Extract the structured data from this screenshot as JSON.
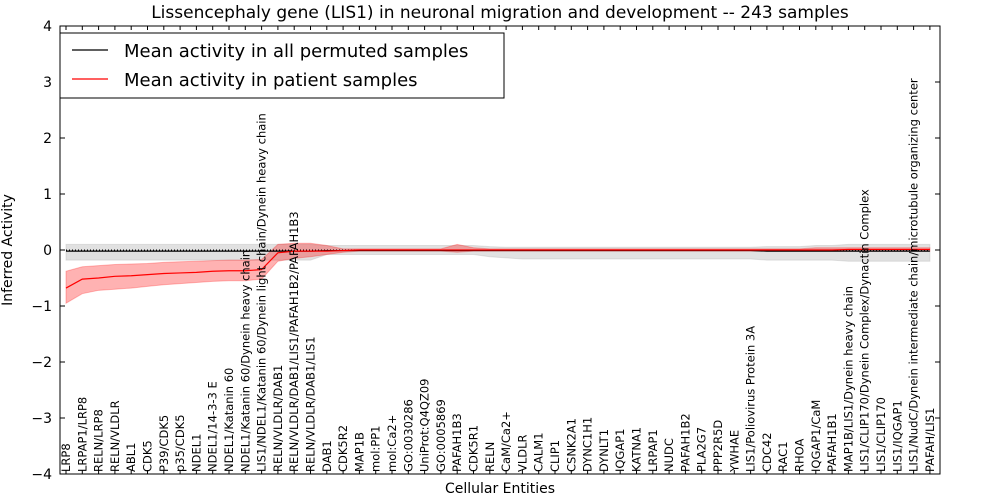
{
  "chart_data": {
    "type": "line",
    "title": "Lissencephaly gene (LIS1) in neuronal migration and development -- 243 samples",
    "xlabel": "Cellular Entities",
    "ylabel": "Inferred Activity",
    "ylim": [
      -4,
      4
    ],
    "yticks": [
      "−4",
      "−3",
      "−2",
      "−1",
      "0",
      "1",
      "2",
      "3",
      "4"
    ],
    "grid": false,
    "legend_position": "top-left",
    "categories": [
      "LRP8",
      "LRPAP1/LRP8",
      "RELN/LRP8",
      "RELN/VLDLR",
      "ABL1",
      "CDK5",
      "P39/CDK5",
      "p35/CDK5",
      "NDEL1",
      "NDEL1/14-3-3 E",
      "NDEL1/Katanin 60",
      "NDEL1/Katanin 60/Dynein heavy chain",
      "LIS1/NDEL1/Katanin 60/Dynein light chain/Dynein heavy chain",
      "RELN/VLDLR/DAB1",
      "RELN/VLDLR/DAB1/LIS1/PAFAH1B2/PAFAH1B3",
      "RELN/VLDLR/DAB1/LIS1",
      "DAB1",
      "CDK5R2",
      "MAP1B",
      "mol:PP1",
      "mol:Ca2+",
      "GO:0030286",
      "UniProt:Q4QZ09",
      "GO:0005869",
      "PAFAH1B3",
      "CDK5R1",
      "RELN",
      "CaM/Ca2+",
      "VLDLR",
      "CALM1",
      "CLIP1",
      "CSNK2A1",
      "DYNC1H1",
      "DYNLT1",
      "IQGAP1",
      "KATNA1",
      "LRPAP1",
      "NUDC",
      "PAFAH1B2",
      "PLA2G7",
      "PPP2R5D",
      "YWHAE",
      "LIS1/Poliovirus Protein 3A",
      "CDC42",
      "RAC1",
      "RHOA",
      "IQGAP1/CaM",
      "PAFAH1B1",
      "MAP1B/LIS1/Dynein heavy chain",
      "LIS1/CLIP170/Dynein Complex/Dynactin Complex",
      "LIS1/CLIP170",
      "LIS1/IQGAP1",
      "LIS1/NudC/Dynein intermediate chain/microtubule organizing center",
      "PAFAH/LIS1"
    ],
    "series": [
      {
        "name": "Mean activity in all permuted samples",
        "color": "#000000",
        "band_color": "#aaaaaa",
        "values": [
          -0.02,
          -0.02,
          -0.02,
          -0.02,
          -0.02,
          -0.02,
          -0.02,
          -0.02,
          -0.02,
          -0.02,
          -0.02,
          -0.02,
          -0.02,
          -0.02,
          -0.02,
          -0.02,
          -0.01,
          -0.01,
          -0.01,
          -0.01,
          -0.01,
          -0.01,
          -0.01,
          -0.01,
          -0.01,
          -0.01,
          -0.01,
          -0.01,
          -0.01,
          -0.01,
          -0.01,
          -0.01,
          -0.01,
          -0.01,
          -0.01,
          -0.01,
          -0.01,
          -0.01,
          -0.01,
          -0.01,
          -0.01,
          -0.01,
          -0.01,
          -0.02,
          -0.02,
          -0.02,
          -0.02,
          -0.02,
          -0.02,
          -0.02,
          -0.02,
          -0.02,
          -0.02,
          -0.02
        ],
        "lower": [
          -0.18,
          -0.18,
          -0.18,
          -0.18,
          -0.18,
          -0.18,
          -0.18,
          -0.18,
          -0.18,
          -0.18,
          -0.18,
          -0.18,
          -0.18,
          -0.18,
          -0.18,
          -0.18,
          -0.08,
          -0.08,
          -0.08,
          -0.08,
          -0.08,
          -0.08,
          -0.08,
          -0.08,
          -0.08,
          -0.08,
          -0.12,
          -0.14,
          -0.16,
          -0.16,
          -0.16,
          -0.16,
          -0.16,
          -0.16,
          -0.16,
          -0.16,
          -0.16,
          -0.16,
          -0.16,
          -0.16,
          -0.16,
          -0.16,
          -0.16,
          -0.18,
          -0.18,
          -0.18,
          -0.18,
          -0.18,
          -0.2,
          -0.2,
          -0.2,
          -0.2,
          -0.2,
          -0.2
        ],
        "upper": [
          0.1,
          0.1,
          0.1,
          0.1,
          0.1,
          0.1,
          0.1,
          0.1,
          0.1,
          0.1,
          0.1,
          0.1,
          0.1,
          0.1,
          0.1,
          0.1,
          0.08,
          0.08,
          0.08,
          0.08,
          0.08,
          0.08,
          0.08,
          0.08,
          0.08,
          0.08,
          0.06,
          0.05,
          0.05,
          0.05,
          0.05,
          0.05,
          0.05,
          0.05,
          0.05,
          0.05,
          0.05,
          0.05,
          0.05,
          0.05,
          0.05,
          0.05,
          0.05,
          0.06,
          0.06,
          0.06,
          0.08,
          0.08,
          0.1,
          0.1,
          0.1,
          0.1,
          0.1,
          0.1
        ]
      },
      {
        "name": "Mean activity in patient samples",
        "color": "#ff0000",
        "band_color": "#ff0000",
        "values": [
          -0.68,
          -0.52,
          -0.5,
          -0.47,
          -0.46,
          -0.44,
          -0.42,
          -0.41,
          -0.4,
          -0.38,
          -0.37,
          -0.37,
          -0.35,
          -0.05,
          -0.02,
          -0.02,
          -0.02,
          -0.01,
          0,
          0,
          0,
          0,
          0,
          0,
          0,
          0,
          0,
          0,
          0,
          0,
          0,
          0,
          0,
          0,
          0,
          0,
          0,
          0,
          0,
          0,
          0,
          0,
          0,
          0,
          0,
          0,
          0,
          0,
          0.01,
          0.01,
          0.01,
          0.01,
          0.01,
          0.01
        ],
        "lower": [
          -0.95,
          -0.78,
          -0.72,
          -0.7,
          -0.68,
          -0.65,
          -0.62,
          -0.6,
          -0.58,
          -0.56,
          -0.55,
          -0.55,
          -0.52,
          -0.2,
          -0.15,
          -0.12,
          -0.08,
          -0.04,
          -0.02,
          -0.02,
          -0.02,
          -0.02,
          -0.02,
          -0.02,
          -0.04,
          -0.02,
          -0.02,
          -0.02,
          -0.02,
          -0.02,
          -0.02,
          -0.02,
          -0.02,
          -0.02,
          -0.02,
          -0.02,
          -0.02,
          -0.02,
          -0.02,
          -0.02,
          -0.02,
          -0.02,
          -0.02,
          -0.02,
          -0.02,
          -0.02,
          -0.02,
          -0.02,
          -0.02,
          -0.02,
          -0.02,
          -0.02,
          -0.02,
          -0.02
        ],
        "upper": [
          -0.38,
          -0.3,
          -0.28,
          -0.26,
          -0.25,
          -0.24,
          -0.22,
          -0.21,
          -0.2,
          -0.19,
          -0.18,
          -0.18,
          -0.17,
          0.1,
          0.12,
          0.12,
          0.08,
          0.02,
          0.02,
          0.02,
          0.02,
          0.02,
          0.02,
          0.02,
          0.1,
          0.04,
          0.02,
          0.02,
          0.02,
          0.02,
          0.02,
          0.02,
          0.02,
          0.02,
          0.02,
          0.02,
          0.02,
          0.02,
          0.02,
          0.02,
          0.02,
          0.02,
          0.02,
          0.02,
          0.02,
          0.02,
          0.04,
          0.04,
          0.04,
          0.04,
          0.04,
          0.04,
          0.04,
          0.04
        ]
      }
    ],
    "reference_line": 0
  }
}
